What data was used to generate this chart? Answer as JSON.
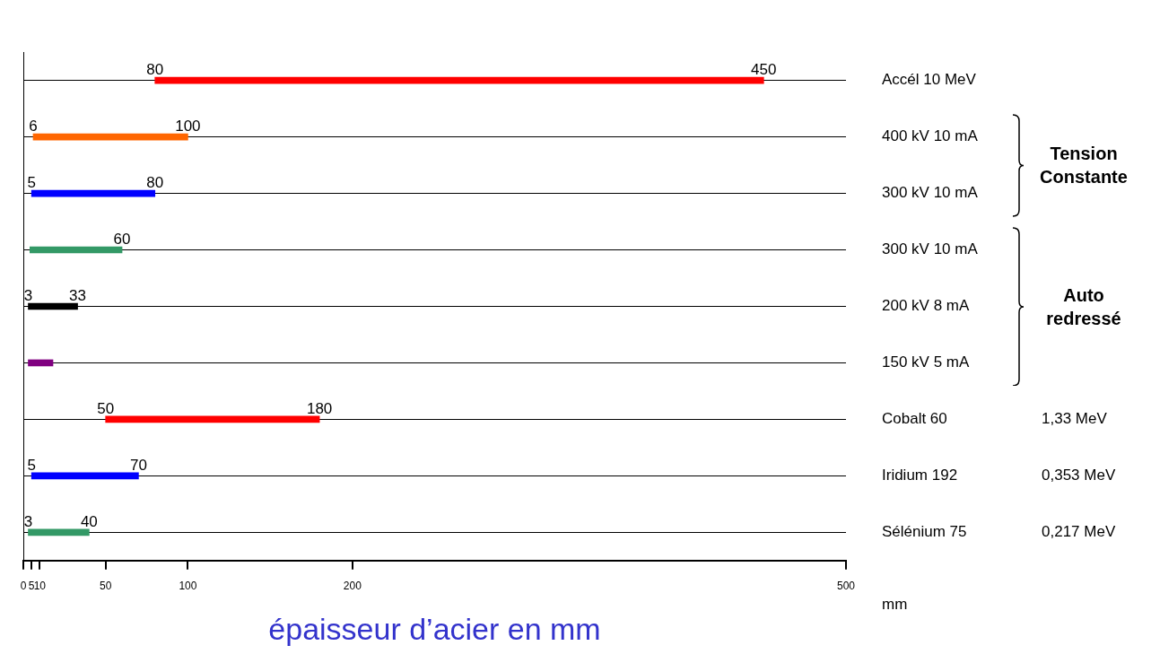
{
  "chart_data": {
    "type": "bar",
    "orientation": "horizontal",
    "xlabel": "épaisseur d’acier en mm",
    "categories": [
      "Accél 10 MeV",
      "400 kV 10 mA",
      "300 kV 10 mA",
      "300 kV 10 mA",
      "200 kV 8 mA",
      "150 kV 5 mA",
      "Cobalt 60",
      "Iridium 192",
      "Sélénium 75"
    ],
    "y2_categories": [
      null,
      null,
      null,
      null,
      null,
      null,
      "1,33 MeV",
      "0,353 MeV",
      "0,217 MeV"
    ],
    "base": [
      80,
      6,
      5,
      4,
      3,
      3,
      50,
      5,
      3
    ],
    "values": [
      370,
      94,
      75,
      56,
      30,
      15,
      130,
      65,
      37
    ],
    "colors": [
      "#ff0000",
      "#ff6600",
      "#0000ff",
      "#339966",
      "#000000",
      "#800080",
      "#ff0000",
      "#0000ff",
      "#339966"
    ],
    "xlim": [
      0,
      500
    ],
    "xticks": [
      0,
      5,
      10,
      50,
      100,
      200,
      500
    ],
    "grid": "y",
    "legend": false,
    "annotations": [
      {
        "text": "80",
        "x": 80,
        "y": "Accél 10 MeV"
      },
      {
        "text": "450",
        "x": 450,
        "y": "Accél 10 MeV"
      },
      {
        "text": "6",
        "x": 6,
        "y": "400 kV 10 mA"
      },
      {
        "text": "100",
        "x": 100,
        "y": "400 kV 10 mA"
      },
      {
        "text": "5",
        "x": 5,
        "y": "300 kV 10 mA"
      },
      {
        "text": "80",
        "x": 80,
        "y": "300 kV 10 mA"
      },
      {
        "text": "60",
        "x": 60,
        "y": "300 kV 10 mA"
      },
      {
        "text": "3",
        "x": 3,
        "y": "200 kV 8 mA"
      },
      {
        "text": "33",
        "x": 33,
        "y": "200 kV 8 mA"
      },
      {
        "text": "50",
        "x": 50,
        "y": "Cobalt 60"
      },
      {
        "text": "180",
        "x": 180,
        "y": "Cobalt 60"
      },
      {
        "text": "5",
        "x": 5,
        "y": "Iridium 192"
      },
      {
        "text": "70",
        "x": 70,
        "y": "Iridium 192"
      },
      {
        "text": "3",
        "x": 3,
        "y": "Sélénium 75"
      },
      {
        "text": "40",
        "x": 40,
        "y": "Sélénium 75"
      },
      "Tension Constante",
      "Auto redressé",
      "mm"
    ]
  }
}
